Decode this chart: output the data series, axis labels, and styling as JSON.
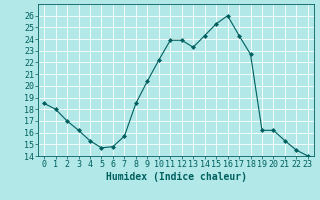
{
  "x": [
    0,
    1,
    2,
    3,
    4,
    5,
    6,
    7,
    8,
    9,
    10,
    11,
    12,
    13,
    14,
    15,
    16,
    17,
    18,
    19,
    20,
    21,
    22,
    23
  ],
  "y": [
    18.5,
    18.0,
    17.0,
    16.2,
    15.3,
    14.7,
    14.8,
    15.7,
    18.5,
    20.4,
    22.2,
    23.9,
    23.9,
    23.3,
    24.3,
    25.3,
    26.0,
    24.3,
    22.7,
    16.2,
    16.2,
    15.3,
    14.5,
    14.0
  ],
  "line_color": "#005f5f",
  "marker": "D",
  "marker_size": 2,
  "bg_color": "#b2e8e8",
  "grid_color": "#ffffff",
  "xlabel": "Humidex (Indice chaleur)",
  "ylim": [
    14,
    27
  ],
  "xlim": [
    -0.5,
    23.5
  ],
  "yticks": [
    14,
    15,
    16,
    17,
    18,
    19,
    20,
    21,
    22,
    23,
    24,
    25,
    26
  ],
  "xticks": [
    0,
    1,
    2,
    3,
    4,
    5,
    6,
    7,
    8,
    9,
    10,
    11,
    12,
    13,
    14,
    15,
    16,
    17,
    18,
    19,
    20,
    21,
    22,
    23
  ],
  "tick_label_fontsize": 6,
  "xlabel_fontsize": 7
}
